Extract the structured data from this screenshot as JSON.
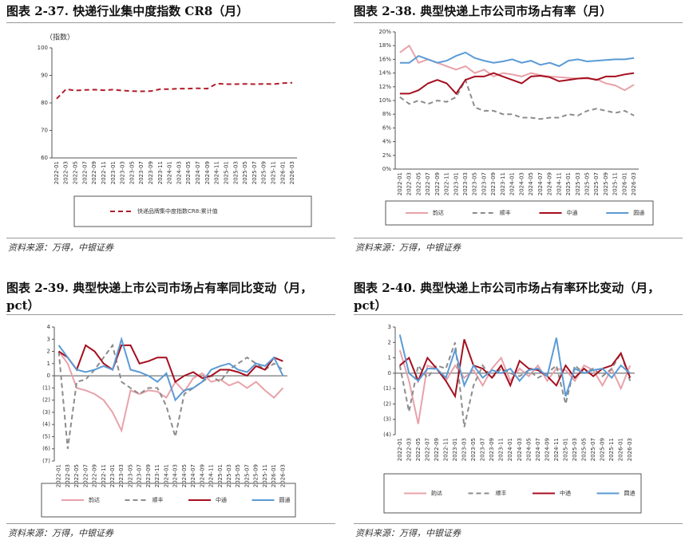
{
  "chart_data": [
    {
      "type": "line",
      "title": "图表 2-37. 快递行业集中度指数 CR8（月）",
      "source": "资料来源：万得，中银证券",
      "y_label": "（指数）",
      "categories": [
        "2022-01",
        "2022-03",
        "2022-05",
        "2022-07",
        "2022-09",
        "2022-11",
        "2023-01",
        "2023-03",
        "2023-05",
        "2023-07",
        "2023-09",
        "2023-11",
        "2024-01",
        "2024-03",
        "2024-05",
        "2024-07",
        "2024-09",
        "2024-11",
        "2025-01",
        "2025-03",
        "2025-05",
        "2025-07",
        "2025-09",
        "2025-11",
        "2026-01",
        "2026-03"
      ],
      "ylim": [
        60,
        100
      ],
      "yticks": [
        60,
        70,
        80,
        90,
        100
      ],
      "grid": false,
      "series": [
        {
          "name": "快递品牌集中度指数CR8:累计值",
          "color": "#b01e2a",
          "dashed": true,
          "values": [
            81.5,
            85,
            84.5,
            84.7,
            84.8,
            84.6,
            84.8,
            84.5,
            84.3,
            84.2,
            84.3,
            85,
            85,
            85.2,
            85.2,
            85.3,
            85.2,
            87,
            86.8,
            86.8,
            86.9,
            86.8,
            86.9,
            86.8,
            87.2,
            87.3
          ]
        }
      ]
    },
    {
      "type": "line",
      "title": "图表 2-38. 典型快递上市公司市场占有率（月）",
      "source": "资料来源：万得，中银证券",
      "categories": [
        "2022-01",
        "2022-03",
        "2022-05",
        "2022-07",
        "2022-09",
        "2022-11",
        "2023-01",
        "2023-03",
        "2023-05",
        "2023-07",
        "2023-09",
        "2023-11",
        "2024-01",
        "2024-03",
        "2024-05",
        "2024-07",
        "2024-09",
        "2024-11",
        "2025-01",
        "2025-03",
        "2025-05",
        "2025-07",
        "2025-09",
        "2025-11",
        "2026-01",
        "2026-03"
      ],
      "ylim": [
        0,
        20
      ],
      "yticks": [
        {
          "value": 0,
          "label": "0%"
        },
        {
          "value": 2,
          "label": "2%"
        },
        {
          "value": 4,
          "label": "4%"
        },
        {
          "value": 6,
          "label": "6%"
        },
        {
          "value": 8,
          "label": "8%"
        },
        {
          "value": 10,
          "label": "10%"
        },
        {
          "value": 12,
          "label": "12%"
        },
        {
          "value": 14,
          "label": "14%"
        },
        {
          "value": 16,
          "label": "16%"
        },
        {
          "value": 18,
          "label": "18%"
        },
        {
          "value": 20,
          "label": "20%"
        }
      ],
      "grid": false,
      "series": [
        {
          "name": "韵达",
          "color": "#e8a2aa",
          "dashed": false,
          "values": [
            17,
            18,
            15.5,
            16,
            15.5,
            15,
            14.5,
            15,
            14,
            14.5,
            13.5,
            14,
            13.8,
            13.5,
            14,
            13.7,
            13.5,
            13.4,
            13.3,
            13.2,
            13.2,
            13.1,
            12.5,
            12.2,
            11.5,
            12.3
          ]
        },
        {
          "name": "顺丰",
          "color": "#8c8c8c",
          "dashed": true,
          "values": [
            10.5,
            9.5,
            10,
            9.5,
            10,
            9.8,
            10.5,
            13,
            9,
            8.5,
            8.5,
            8,
            8,
            7.5,
            7.5,
            7.3,
            7.5,
            7.5,
            8,
            7.8,
            8.5,
            8.8,
            8.5,
            8.2,
            8.5,
            7.8
          ]
        },
        {
          "name": "中通",
          "color": "#a50f1f",
          "dashed": false,
          "values": [
            11,
            11,
            11.5,
            12.5,
            13,
            12.5,
            11,
            13,
            13.5,
            13.5,
            14,
            13.5,
            13,
            12.5,
            13.5,
            13.6,
            13.4,
            12.8,
            13,
            13.2,
            13.3,
            13,
            13.5,
            13.5,
            13.8,
            14
          ]
        },
        {
          "name": "圆通",
          "color": "#5b9bd5",
          "dashed": false,
          "values": [
            15.5,
            15.5,
            16.5,
            16,
            15.5,
            15.8,
            16.5,
            17,
            16.2,
            15.8,
            15.5,
            15.7,
            16,
            15.5,
            15.8,
            15.2,
            15.5,
            15,
            15.8,
            16,
            15.7,
            15.8,
            15.9,
            16,
            16,
            16.2
          ]
        }
      ]
    },
    {
      "type": "line",
      "title": "图表 2-39. 典型快递上市公司市场占有率同比变动（月，pct）",
      "source": "资料来源：万得，中银证券",
      "categories": [
        "2022-01",
        "2022-03",
        "2022-05",
        "2022-07",
        "2022-09",
        "2022-11",
        "2023-01",
        "2023-03",
        "2023-05",
        "2023-07",
        "2023-09",
        "2023-11",
        "2024-01",
        "2024-03",
        "2024-05",
        "2024-07",
        "2024-09",
        "2024-11",
        "2025-01",
        "2025-03",
        "2025-05",
        "2025-07",
        "2025-09",
        "2025-11",
        "2026-01",
        "2026-03"
      ],
      "ylim": [
        -7,
        4
      ],
      "yticks": [
        {
          "value": -7,
          "label": "(7)"
        },
        {
          "value": -6,
          "label": "(6)"
        },
        {
          "value": -5,
          "label": "(5)"
        },
        {
          "value": -4,
          "label": "(4)"
        },
        {
          "value": -3,
          "label": "(3)"
        },
        {
          "value": -2,
          "label": "(2)"
        },
        {
          "value": -1,
          "label": "(1)"
        },
        0,
        1,
        2,
        3,
        4
      ],
      "grid": false,
      "series": [
        {
          "name": "韵达",
          "color": "#e8a2aa",
          "dashed": false,
          "values": [
            2,
            1,
            -1,
            -1.2,
            -1.5,
            -2,
            -3,
            -4.5,
            -1.2,
            -1.5,
            -1.2,
            -1.3,
            -1.8,
            -0.5,
            -1.3,
            -0.2,
            0.2,
            -0.5,
            -0.3,
            -0.8,
            -0.5,
            -1,
            -0.5,
            -1.2,
            -1.8,
            -1
          ]
        },
        {
          "name": "顺丰",
          "color": "#8c8c8c",
          "dashed": true,
          "values": [
            2,
            -6,
            -0.5,
            -0.3,
            0.5,
            1.5,
            2.5,
            -0.5,
            -1,
            -1.5,
            -1,
            -1,
            -2.5,
            -5,
            -1.5,
            -1,
            -0.5,
            0,
            -0.5,
            0.5,
            1,
            1.5,
            1,
            0.5,
            1,
            0.5
          ]
        },
        {
          "name": "中通",
          "color": "#a50f1f",
          "dashed": false,
          "values": [
            2,
            1.5,
            0.5,
            2.5,
            2,
            1,
            0.5,
            2.5,
            2.5,
            1,
            1.2,
            1.5,
            1.5,
            -0.5,
            0,
            0.3,
            -0.2,
            0,
            0.5,
            0.5,
            0.3,
            0,
            0.8,
            0.5,
            1.5,
            1.2
          ]
        },
        {
          "name": "圆通",
          "color": "#5b9bd5",
          "dashed": false,
          "values": [
            2.5,
            1.5,
            0.5,
            0.3,
            0.5,
            0.8,
            0.5,
            3,
            0.5,
            0.3,
            0,
            -0.5,
            0.2,
            -2,
            -1.2,
            -1,
            -0.5,
            0.5,
            0.8,
            1,
            0.5,
            0.3,
            1,
            0.8,
            1.5,
            0
          ]
        }
      ]
    },
    {
      "type": "line",
      "title": "图表 2-40. 典型快递上市公司市场占有率环比变动（月，pct）",
      "source": "资料来源：万得，中银证券",
      "categories": [
        "2022-01",
        "2022-03",
        "2022-05",
        "2022-07",
        "2022-09",
        "2022-11",
        "2023-01",
        "2023-03",
        "2023-05",
        "2023-07",
        "2023-09",
        "2023-11",
        "2024-01",
        "2024-03",
        "2024-05",
        "2024-07",
        "2024-09",
        "2024-11",
        "2025-01",
        "2025-03",
        "2025-05",
        "2025-07",
        "2025-09",
        "2025-11",
        "2026-01",
        "2026-03"
      ],
      "ylim": [
        -4,
        3
      ],
      "yticks": [
        {
          "value": -4,
          "label": "(4)"
        },
        {
          "value": -3,
          "label": "(3)"
        },
        {
          "value": -2,
          "label": "(2)"
        },
        {
          "value": -1,
          "label": "(1)"
        },
        0,
        1,
        2,
        3
      ],
      "grid": false,
      "series": [
        {
          "name": "韵达",
          "color": "#e8a2aa",
          "dashed": false,
          "values": [
            1.5,
            -0.5,
            -3.3,
            0.5,
            0.3,
            -0.5,
            0.5,
            -0.3,
            0.2,
            -0.8,
            0.3,
            1,
            -0.5,
            0.3,
            -0.2,
            0.5,
            -0.5,
            0.3,
            0.2,
            -0.5,
            0.5,
            0.2,
            -0.8,
            0.3,
            -1,
            0.5
          ]
        },
        {
          "name": "顺丰",
          "color": "#8c8c8c",
          "dashed": true,
          "values": [
            0.5,
            -2.5,
            0.5,
            -0.3,
            0.5,
            0.3,
            2,
            -3.5,
            -0.8,
            0.5,
            -0.3,
            0.3,
            0,
            -0.2,
            0.2,
            -0.3,
            0,
            0.5,
            -2,
            0.5,
            0,
            0.3,
            -0.2,
            0.3,
            1.3,
            -0.5
          ]
        },
        {
          "name": "中通",
          "color": "#a50f1f",
          "dashed": false,
          "values": [
            0.5,
            1,
            -0.5,
            1,
            0.3,
            -0.5,
            -1.5,
            2.2,
            0.5,
            0.3,
            -0.3,
            0.5,
            -0.8,
            0.8,
            0.3,
            0.2,
            -0.2,
            -0.8,
            0.5,
            -0.3,
            0.3,
            -0.2,
            0.3,
            0.5,
            1.3,
            -0.3
          ]
        },
        {
          "name": "圆通",
          "color": "#5b9bd5",
          "dashed": false,
          "values": [
            2.5,
            0,
            -0.5,
            0.3,
            0.3,
            -0.3,
            1.5,
            -0.8,
            0.5,
            -0.3,
            0.2,
            0,
            0.3,
            -0.5,
            0.2,
            0.3,
            -0.2,
            2.3,
            -1.5,
            0.3,
            0,
            0.2,
            0.3,
            -0.3,
            0.5,
            0
          ]
        }
      ]
    }
  ]
}
